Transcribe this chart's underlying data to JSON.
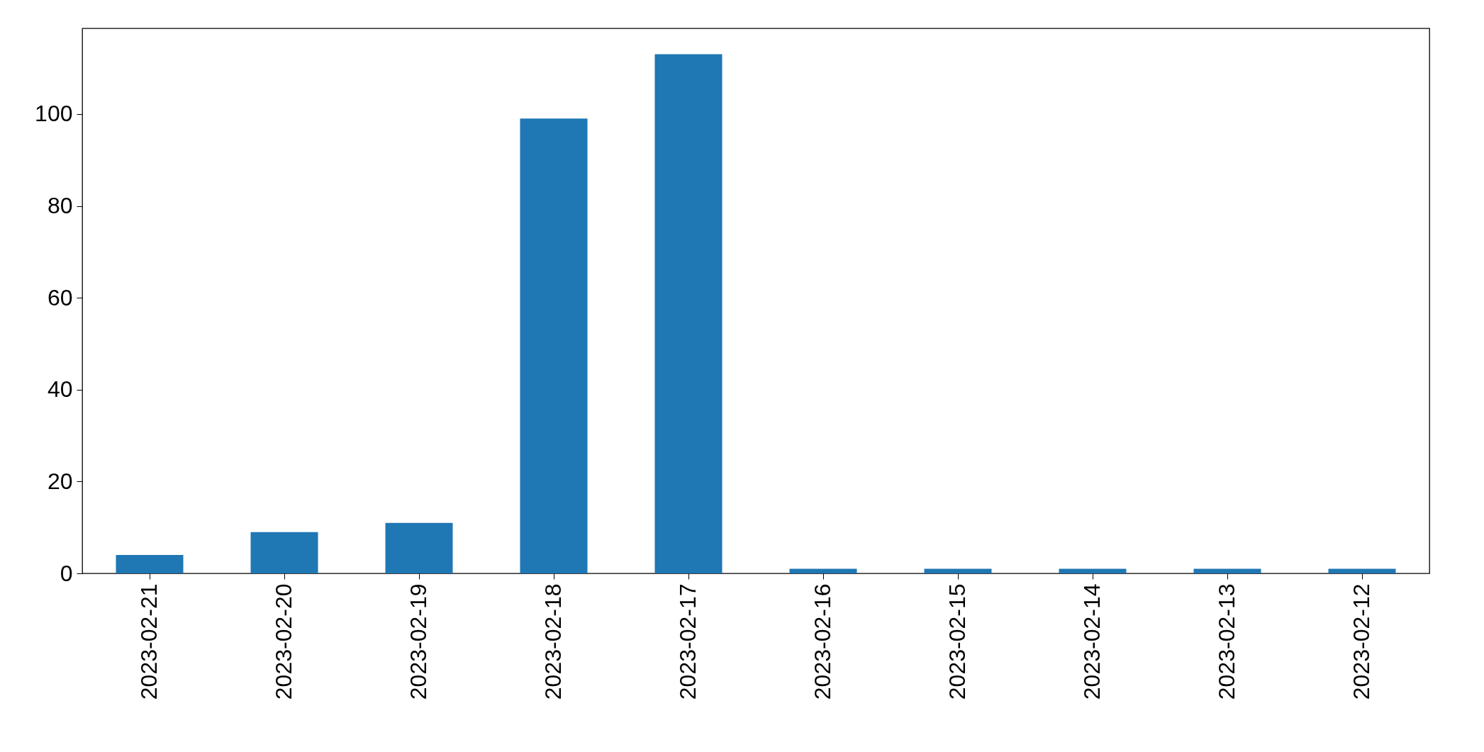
{
  "chart_data": {
    "type": "bar",
    "categories": [
      "2023-02-21",
      "2023-02-20",
      "2023-02-19",
      "2023-02-18",
      "2023-02-17",
      "2023-02-16",
      "2023-02-15",
      "2023-02-14",
      "2023-02-13",
      "2023-02-12"
    ],
    "values": [
      4,
      9,
      11,
      99,
      113,
      1,
      1,
      1,
      1,
      1
    ],
    "color": "#1f77b4",
    "ylim": [
      0,
      118.65
    ],
    "yticks": [
      0,
      20,
      40,
      60,
      80,
      100
    ],
    "grid": false
  }
}
